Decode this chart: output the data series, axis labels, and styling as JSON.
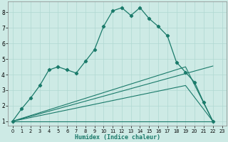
{
  "xlabel": "Humidex (Indice chaleur)",
  "bg_color": "#cdeae5",
  "grid_color": "#b0d8d2",
  "line_color": "#1a7a6a",
  "xlim": [
    -0.5,
    23.5
  ],
  "ylim": [
    0.7,
    8.7
  ],
  "yticks": [
    1,
    2,
    3,
    4,
    5,
    6,
    7,
    8
  ],
  "xticks": [
    0,
    1,
    2,
    3,
    4,
    5,
    6,
    7,
    8,
    9,
    10,
    11,
    12,
    13,
    14,
    15,
    16,
    17,
    18,
    19,
    20,
    21,
    22,
    23
  ],
  "main_series_x": [
    0,
    1,
    2,
    3,
    4,
    5,
    6,
    7,
    8,
    9,
    10,
    11,
    12,
    13,
    14,
    15,
    16,
    17,
    18,
    19,
    20,
    21,
    22
  ],
  "main_series_y": [
    1.0,
    1.8,
    2.5,
    3.3,
    4.3,
    4.5,
    4.3,
    4.1,
    4.85,
    5.6,
    7.1,
    8.1,
    8.3,
    7.8,
    8.3,
    7.6,
    7.1,
    6.5,
    4.8,
    4.15,
    3.5,
    2.2,
    1.0
  ],
  "trend1_x": [
    0,
    22
  ],
  "trend1_y": [
    1.0,
    4.55
  ],
  "trend2_x": [
    0,
    19,
    22
  ],
  "trend2_y": [
    1.0,
    4.5,
    1.0
  ],
  "trend3_x": [
    0,
    22
  ],
  "trend3_y": [
    1.0,
    1.0
  ],
  "trend4_x": [
    0,
    19,
    22
  ],
  "trend4_y": [
    1.0,
    3.3,
    1.0
  ]
}
